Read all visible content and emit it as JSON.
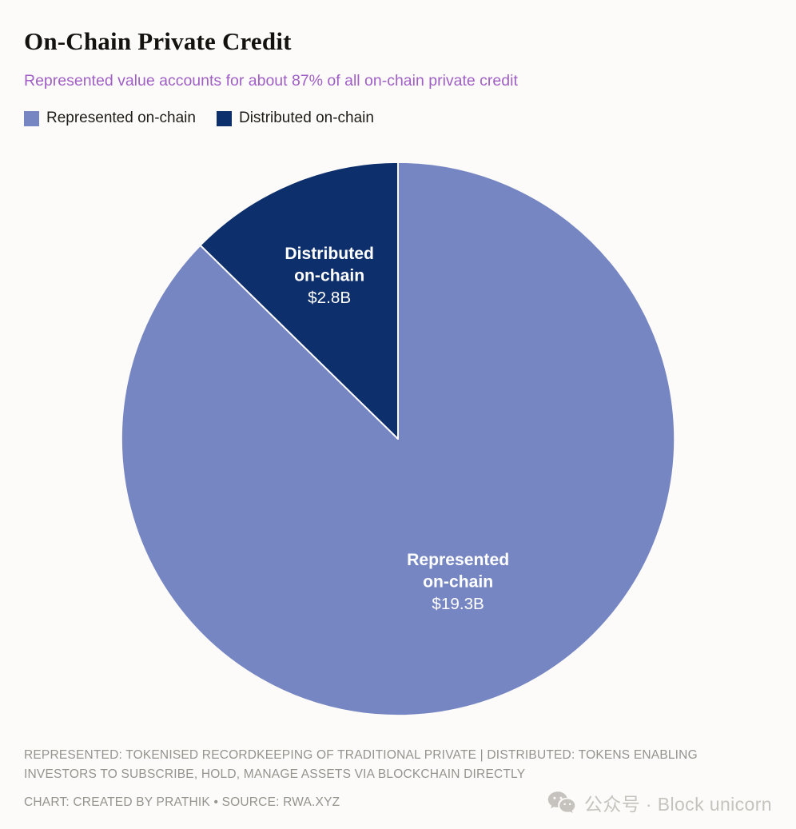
{
  "header": {
    "title": "On-Chain Private Credit",
    "subtitle": "Represented value accounts for about 87% of all on-chain private credit",
    "subtitle_color": "#A05FC5"
  },
  "legend": {
    "items": [
      {
        "label": "Represented on-chain",
        "color": "#7686C2"
      },
      {
        "label": "Distributed on-chain",
        "color": "#0D2F6B"
      }
    ]
  },
  "chart_data": {
    "type": "pie",
    "title": "On-Chain Private Credit",
    "subtitle": "Represented value accounts for about 87% of all on-chain private credit",
    "represented_share_pct": 87,
    "start_angle_deg": 0,
    "direction": "clockwise",
    "legend_position": "top-left",
    "label_text_color": "#FFFFFF",
    "slices": [
      {
        "label": "Represented on-chain",
        "value_billions": 19.3,
        "display_value": "$19.3B",
        "color": "#7686C2",
        "label_lines": [
          "Represented",
          "on-chain",
          "$19.3B"
        ],
        "label_radius_frac": 0.56
      },
      {
        "label": "Distributed on-chain",
        "value_billions": 2.8,
        "display_value": "$2.8B",
        "color": "#0D2F6B",
        "label_lines": [
          "Distributed",
          "on-chain",
          "$2.8B"
        ],
        "label_radius_frac": 0.64
      }
    ]
  },
  "footer": {
    "note": "REPRESENTED: TOKENISED RECORDKEEPING OF TRADITIONAL PRIVATE | DISTRIBUTED: TOKENS ENABLING INVESTORS TO SUBSCRIBE, HOLD, MANAGE ASSETS VIA BLOCKCHAIN DIRECTLY",
    "credit": "CHART: CREATED BY PRATHIK • SOURCE: RWA.XYZ"
  },
  "watermark": {
    "icon": "wechat-icon",
    "text": "公众号 · Block unicorn"
  }
}
